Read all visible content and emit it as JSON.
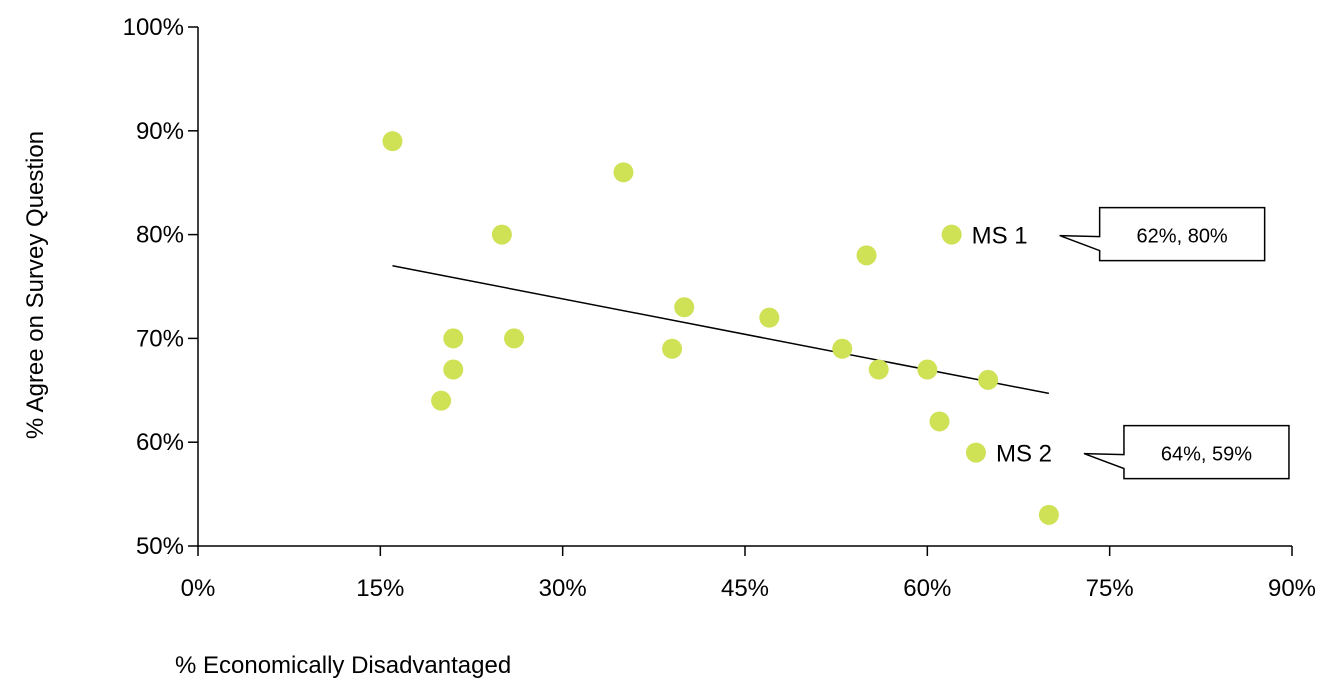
{
  "chart_data": {
    "type": "scatter",
    "title": "",
    "xlabel": "% Economically Disadvantaged",
    "ylabel": "% Agree on Survey Question",
    "xlim": [
      0,
      90
    ],
    "ylim": [
      50,
      100
    ],
    "x_ticks": [
      "0%",
      "15%",
      "30%",
      "45%",
      "60%",
      "75%",
      "90%"
    ],
    "y_ticks": [
      "50%",
      "60%",
      "70%",
      "80%",
      "90%",
      "100%"
    ],
    "x_tick_values": [
      0,
      15,
      30,
      45,
      60,
      75,
      90
    ],
    "y_tick_values": [
      50,
      60,
      70,
      80,
      90,
      100
    ],
    "grid": false,
    "point_color": "#cfe155",
    "points": [
      {
        "x": 16,
        "y": 89
      },
      {
        "x": 20,
        "y": 64
      },
      {
        "x": 21,
        "y": 70
      },
      {
        "x": 21,
        "y": 67
      },
      {
        "x": 25,
        "y": 80
      },
      {
        "x": 26,
        "y": 70
      },
      {
        "x": 35,
        "y": 86
      },
      {
        "x": 39,
        "y": 69
      },
      {
        "x": 40,
        "y": 73
      },
      {
        "x": 47,
        "y": 72
      },
      {
        "x": 53,
        "y": 69
      },
      {
        "x": 55,
        "y": 78
      },
      {
        "x": 56,
        "y": 67
      },
      {
        "x": 60,
        "y": 67
      },
      {
        "x": 61,
        "y": 62
      },
      {
        "x": 62,
        "y": 80,
        "label": "MS 1",
        "callout": "62%, 80%"
      },
      {
        "x": 64,
        "y": 59,
        "label": "MS 2",
        "callout": "64%, 59%"
      },
      {
        "x": 65,
        "y": 66
      },
      {
        "x": 70,
        "y": 53
      }
    ],
    "trendline": {
      "x1": 16,
      "y1": 77,
      "x2": 70,
      "y2": 64.7
    }
  }
}
